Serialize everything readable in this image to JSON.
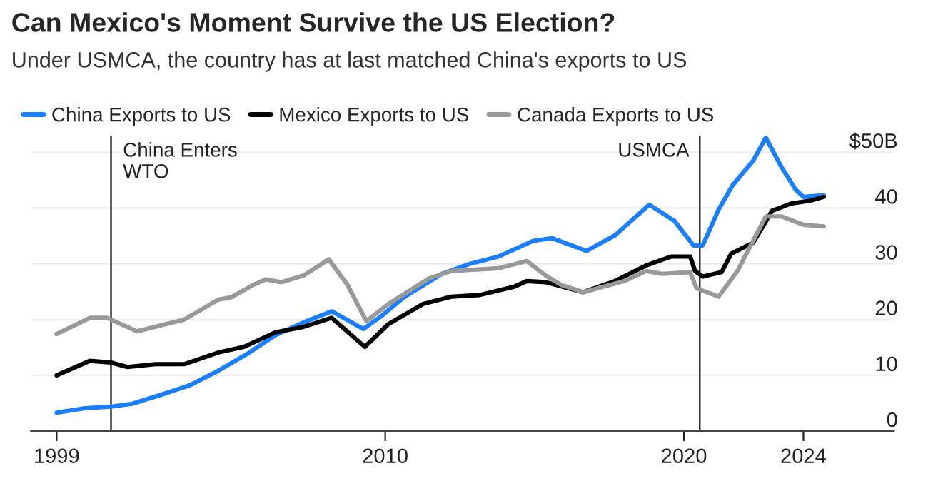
{
  "chart_data": {
    "type": "line",
    "title": "Can Mexico's Moment Survive the US Election?",
    "subtitle": "Under USMCA, the country has at last matched China's exports to US",
    "series": [
      {
        "name": "China Exports to US",
        "color": "#1a7fff",
        "x": [
          1999.0,
          1999.95,
          2000.82,
          2001.53,
          2002.49,
          2003.45,
          2004.4,
          2005.37,
          2006.32,
          2007.27,
          2008.21,
          2009.27,
          2009.84,
          2010.63,
          2011.9,
          2012.84,
          2013.79,
          2014.95,
          2015.58,
          2016.74,
          2017.69,
          2018.84,
          2019.68,
          2020.32,
          2020.63,
          2021.16,
          2021.63,
          2022.32,
          2022.74,
          2023.26,
          2023.74,
          2024.0,
          2024.68
        ],
        "values": [
          3.3,
          4.1,
          4.4,
          4.9,
          6.5,
          8.2,
          10.8,
          13.8,
          17.2,
          19.5,
          21.5,
          18.3,
          20.5,
          24,
          28.2,
          30,
          31.3,
          34.1,
          34.6,
          32.3,
          35.1,
          40.6,
          37.7,
          33.3,
          33.3,
          39.7,
          44.1,
          48.5,
          52.6,
          47.4,
          43.3,
          42,
          42.3
        ]
      },
      {
        "name": "Mexico Exports to US",
        "color": "#000000",
        "x": [
          1999.0,
          2000.11,
          2000.82,
          2001.37,
          2002.32,
          2003.27,
          2004.42,
          2005.27,
          2006.32,
          2007.27,
          2008.21,
          2009.32,
          2010.11,
          2011.27,
          2012.21,
          2013.16,
          2014.32,
          2014.74,
          2015.37,
          2016.63,
          2017.69,
          2018.74,
          2019.58,
          2020.21,
          2020.37,
          2020.63,
          2021.26,
          2021.58,
          2022.32,
          2022.95,
          2023.58,
          2024.21,
          2024.68
        ],
        "values": [
          10,
          12.6,
          12.3,
          11.5,
          12,
          12,
          14.1,
          15.1,
          17.7,
          18.7,
          20.3,
          15.1,
          19.2,
          22.8,
          24.1,
          24.4,
          25.9,
          26.9,
          26.7,
          24.9,
          26.9,
          29.7,
          31.3,
          31.3,
          28.7,
          27.7,
          28.5,
          31.8,
          33.8,
          39.5,
          40.8,
          41.3,
          42
        ]
      },
      {
        "name": "Canada Exports to US",
        "color": "#999999",
        "x": [
          1999.0,
          2000.11,
          2000.69,
          2001.69,
          2002.53,
          2003.27,
          2004.42,
          2004.85,
          2005.58,
          2006.0,
          2006.53,
          2007.27,
          2008.11,
          2008.74,
          2009.37,
          2010.11,
          2011.48,
          2012.21,
          2013.79,
          2014.74,
          2015.37,
          2015.9,
          2016.63,
          2018.0,
          2018.74,
          2019.26,
          2020.21,
          2020.42,
          2021.16,
          2021.79,
          2022.74,
          2023.26,
          2024.0,
          2024.68
        ],
        "values": [
          17.4,
          20.3,
          20.3,
          17.9,
          19,
          20,
          23.6,
          24,
          26.2,
          27.2,
          26.7,
          27.9,
          30.8,
          26.2,
          19.7,
          22.8,
          27.4,
          28.7,
          29.2,
          30.5,
          27.9,
          26.2,
          24.9,
          26.9,
          28.7,
          28.2,
          28.5,
          25.6,
          24.1,
          28.7,
          38.5,
          38.5,
          37,
          36.7
        ]
      }
    ],
    "xlim": [
      1998.14,
      2027.03
    ],
    "xticks": [
      1999,
      2010,
      2020,
      2024
    ],
    "ylim": [
      0,
      53
    ],
    "yticks": [
      0,
      10,
      20,
      30,
      40,
      {
        "value": 50,
        "label": "$50B"
      }
    ],
    "ref_lines": [
      {
        "axis": "x",
        "value": 2000.82,
        "label": "China Enters\nWTO",
        "color": "#333333"
      },
      {
        "axis": "x",
        "value": 2020.53,
        "label": "USMCA",
        "color": "#333333"
      }
    ],
    "grid": "y",
    "legend": "top left",
    "marker": "none",
    "line_style": "solid"
  }
}
